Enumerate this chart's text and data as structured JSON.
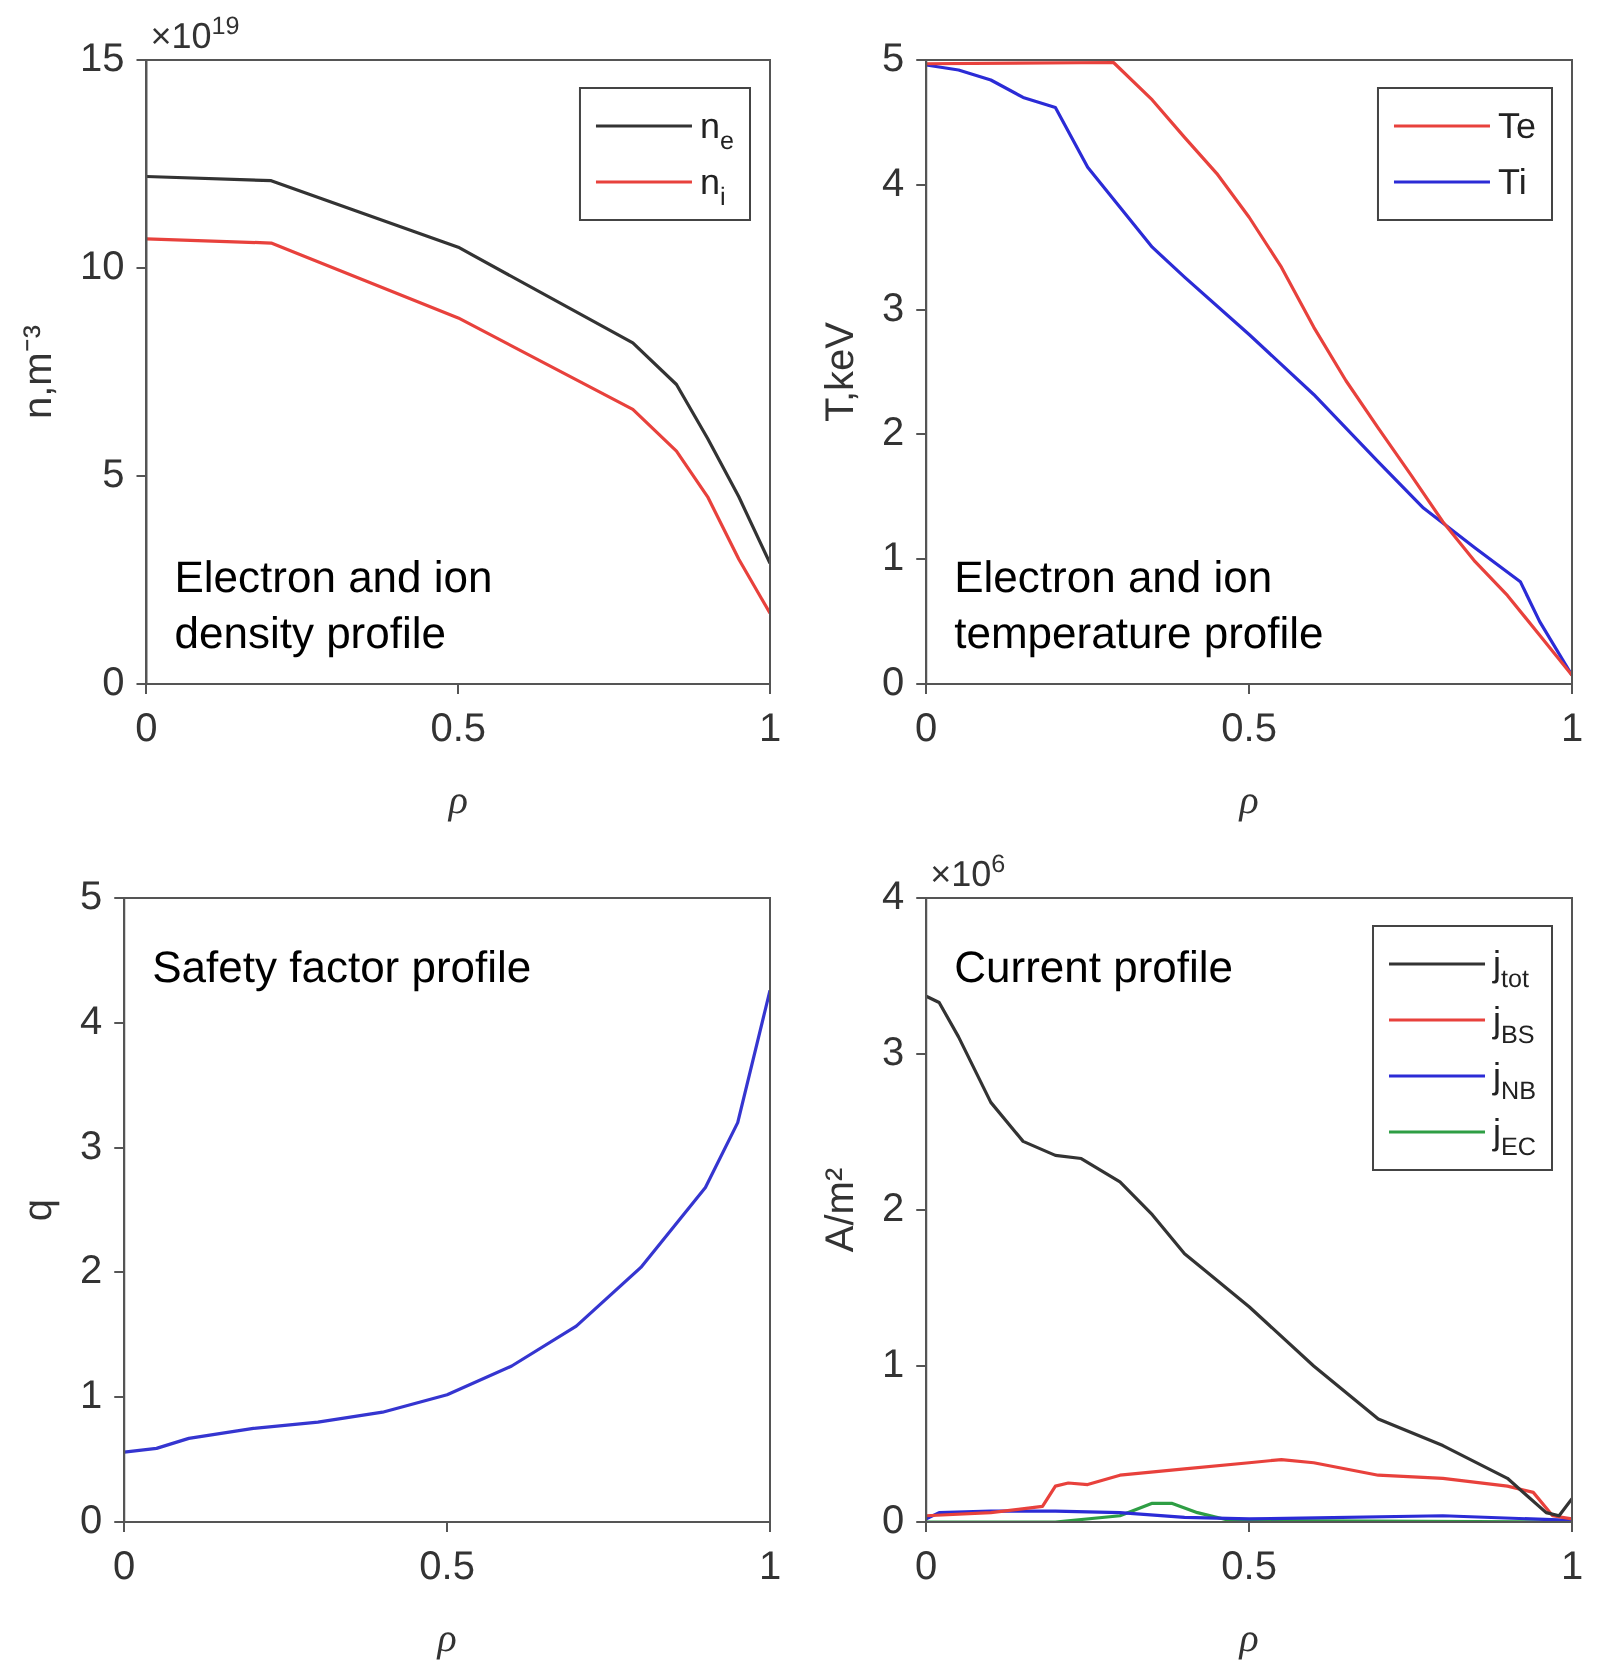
{
  "chart_data": [
    {
      "type": "line",
      "title": "Electron and ion density profile",
      "xlabel": "ρ",
      "ylabel": "n,m⁻³",
      "annotations": [
        "×10$^{19}$"
      ],
      "xlim": [
        0,
        1
      ],
      "xticks": [
        0,
        0.5,
        1
      ],
      "ylim": [
        0,
        15
      ],
      "yticks": [
        0,
        5,
        10,
        15
      ],
      "legend": "top right",
      "series": [
        {
          "name": "n$_{e}$",
          "color": "#333333",
          "x": [
            0,
            0.2,
            0.5,
            0.78,
            0.85,
            0.9,
            0.95,
            1
          ],
          "values": [
            12.2,
            12.1,
            10.5,
            8.2,
            7.2,
            5.9,
            4.5,
            2.9
          ]
        },
        {
          "name": "n$_{i}$",
          "color": "#e8413c",
          "x": [
            0,
            0.2,
            0.5,
            0.78,
            0.85,
            0.9,
            0.95,
            1
          ],
          "values": [
            10.7,
            10.6,
            8.8,
            6.6,
            5.6,
            4.5,
            3.0,
            1.7
          ]
        }
      ]
    },
    {
      "type": "line",
      "title": "Electron and ion temperature profile",
      "xlabel": "ρ",
      "ylabel": "T,keV",
      "xlim": [
        0,
        1
      ],
      "xticks": [
        0,
        0.5,
        1
      ],
      "ylim": [
        0,
        5
      ],
      "yticks": [
        0,
        1,
        2,
        3,
        4,
        5
      ],
      "legend": "top right",
      "series": [
        {
          "name": "Te",
          "color": "#e8413c",
          "x": [
            0,
            0.29,
            0.35,
            0.4,
            0.45,
            0.5,
            0.55,
            0.6,
            0.65,
            0.7,
            0.75,
            0.8,
            0.85,
            0.9,
            0.95,
            1
          ],
          "values": [
            4.97,
            4.98,
            4.68,
            4.38,
            4.09,
            3.74,
            3.34,
            2.86,
            2.43,
            2.05,
            1.68,
            1.3,
            0.98,
            0.71,
            0.39,
            0.07
          ]
        },
        {
          "name": "Ti",
          "color": "#2b2bd6",
          "x": [
            0,
            0.05,
            0.1,
            0.15,
            0.2,
            0.25,
            0.3,
            0.35,
            0.4,
            0.5,
            0.6,
            0.7,
            0.77,
            0.85,
            0.92,
            0.95,
            1
          ],
          "values": [
            4.96,
            4.92,
            4.84,
            4.7,
            4.62,
            4.14,
            3.82,
            3.5,
            3.26,
            2.8,
            2.32,
            1.78,
            1.41,
            1.09,
            0.82,
            0.5,
            0.07
          ]
        }
      ]
    },
    {
      "type": "line",
      "title": "Safety factor profile",
      "xlabel": "ρ",
      "ylabel": "q",
      "xlim": [
        0,
        1
      ],
      "xticks": [
        0,
        0.5,
        1
      ],
      "ylim": [
        0,
        5
      ],
      "yticks": [
        0,
        1,
        2,
        3,
        4,
        5
      ],
      "series": [
        {
          "color": "#3535d0",
          "x": [
            0,
            0.05,
            0.1,
            0.2,
            0.3,
            0.4,
            0.5,
            0.6,
            0.7,
            0.8,
            0.9,
            0.95,
            1
          ],
          "values": [
            0.56,
            0.59,
            0.67,
            0.75,
            0.8,
            0.88,
            1.02,
            1.25,
            1.57,
            2.04,
            2.68,
            3.2,
            4.26
          ]
        }
      ]
    },
    {
      "type": "line",
      "title": "Current profile",
      "xlabel": "ρ",
      "ylabel": "A/m²",
      "annotations": [
        "×10$^{6}$"
      ],
      "xlim": [
        0,
        1
      ],
      "xticks": [
        0,
        0.5,
        1
      ],
      "ylim": [
        0,
        4
      ],
      "yticks": [
        0,
        1,
        2,
        3,
        4
      ],
      "legend": "top right",
      "series": [
        {
          "name": "j$_{tot}$",
          "color": "#333333",
          "x": [
            0,
            0.02,
            0.05,
            0.1,
            0.15,
            0.2,
            0.24,
            0.3,
            0.35,
            0.4,
            0.5,
            0.6,
            0.7,
            0.8,
            0.9,
            0.93,
            0.96,
            0.98,
            1
          ],
          "values": [
            3.37,
            3.33,
            3.11,
            2.69,
            2.44,
            2.35,
            2.33,
            2.18,
            1.97,
            1.72,
            1.38,
            1.0,
            0.66,
            0.49,
            0.28,
            0.17,
            0.06,
            0.04,
            0.15
          ]
        },
        {
          "name": "j$_{BS}$",
          "color": "#e8413c",
          "x": [
            0,
            0.1,
            0.18,
            0.2,
            0.22,
            0.25,
            0.3,
            0.4,
            0.5,
            0.55,
            0.6,
            0.7,
            0.8,
            0.9,
            0.94,
            0.97,
            1
          ],
          "values": [
            0.04,
            0.06,
            0.1,
            0.23,
            0.25,
            0.24,
            0.3,
            0.34,
            0.38,
            0.4,
            0.38,
            0.3,
            0.28,
            0.23,
            0.19,
            0.04,
            0.02
          ]
        },
        {
          "name": "j$_{NB}$",
          "color": "#2b2bd6",
          "x": [
            0,
            0.02,
            0.1,
            0.2,
            0.3,
            0.4,
            0.5,
            0.8,
            1
          ],
          "values": [
            0.02,
            0.06,
            0.07,
            0.07,
            0.06,
            0.03,
            0.02,
            0.04,
            0.01
          ]
        },
        {
          "name": "j$_{EC}$",
          "color": "#2e9e44",
          "x": [
            0,
            0.2,
            0.3,
            0.35,
            0.38,
            0.42,
            0.47,
            1
          ],
          "values": [
            0,
            0,
            0.04,
            0.12,
            0.12,
            0.06,
            0.01,
            0
          ]
        }
      ]
    }
  ]
}
